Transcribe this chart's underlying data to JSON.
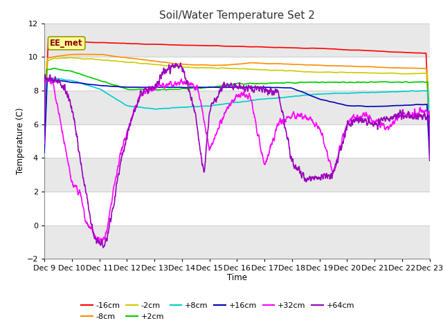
{
  "title": "Soil/Water Temperature Set 2",
  "xlabel": "Time",
  "ylabel": "Temperature (C)",
  "ylim": [
    -2,
    12
  ],
  "yticks": [
    -2,
    0,
    2,
    4,
    6,
    8,
    10,
    12
  ],
  "xlim": [
    0,
    14
  ],
  "xtick_labels": [
    "Dec 9",
    "Dec 10",
    "Dec 11",
    "Dec 12",
    "Dec 13",
    "Dec 14",
    "Dec 15",
    "Dec 16",
    "Dec 17",
    "Dec 18",
    "Dec 19",
    "Dec 20",
    "Dec 21",
    "Dec 22",
    "Dec 23"
  ],
  "annotation": "EE_met",
  "annotation_color": "#8B0000",
  "annotation_bg": "#FFFF99",
  "fig_bg": "#FFFFFF",
  "plot_bg": "#FFFFFF",
  "grid_color": "#DDDDDD",
  "series_colors": {
    "-16cm": "#FF0000",
    "-8cm": "#FF8C00",
    "-2cm": "#CCCC00",
    "+2cm": "#00CC00",
    "+8cm": "#00CCCC",
    "+16cm": "#0000BB",
    "+32cm": "#FF00FF",
    "+64cm": "#9900BB"
  },
  "series_lw": 1.2,
  "legend_order": [
    "-16cm",
    "-8cm",
    "-2cm",
    "+2cm",
    "+8cm",
    "+16cm",
    "+32cm",
    "+64cm"
  ]
}
